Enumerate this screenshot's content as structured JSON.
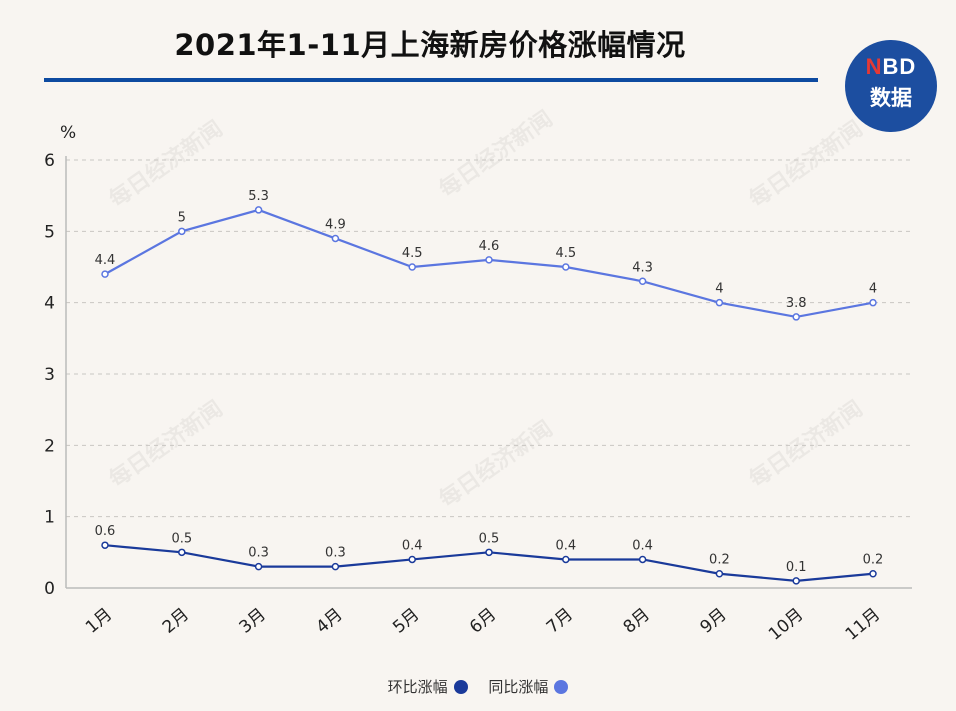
{
  "chart_data": {
    "type": "line",
    "title": "2021年1-11月上海新房价格涨幅情况",
    "ylabel": "%",
    "xlabel": "",
    "categories": [
      "1月",
      "2月",
      "3月",
      "4月",
      "5月",
      "6月",
      "7月",
      "8月",
      "9月",
      "10月",
      "11月"
    ],
    "ylim": [
      0,
      6
    ],
    "yticks": [
      "0",
      "1",
      "2",
      "3",
      "4",
      "5",
      "6"
    ],
    "grid": true,
    "legend_position": "bottom",
    "series": [
      {
        "name": "环比涨幅",
        "color": "#1a3a9a",
        "values": [
          0.6,
          0.5,
          0.3,
          0.3,
          0.4,
          0.5,
          0.4,
          0.4,
          0.2,
          0.1,
          0.2
        ],
        "labels": [
          "0.6",
          "0.5",
          "0.3",
          "0.3",
          "0.4",
          "0.5",
          "0.4",
          "0.4",
          "0.2",
          "0.1",
          "0.2"
        ]
      },
      {
        "name": "同比涨幅",
        "color": "#5b76e0",
        "values": [
          4.4,
          5,
          5.3,
          4.9,
          4.5,
          4.6,
          4.5,
          4.3,
          4,
          3.8,
          4
        ],
        "labels": [
          "4.4",
          "5",
          "5.3",
          "4.9",
          "4.5",
          "4.6",
          "4.5",
          "4.3",
          "4",
          "3.8",
          "4"
        ]
      }
    ]
  },
  "logo": {
    "top": "NBD",
    "bottom": "数据"
  },
  "watermark": "每日经济新闻"
}
